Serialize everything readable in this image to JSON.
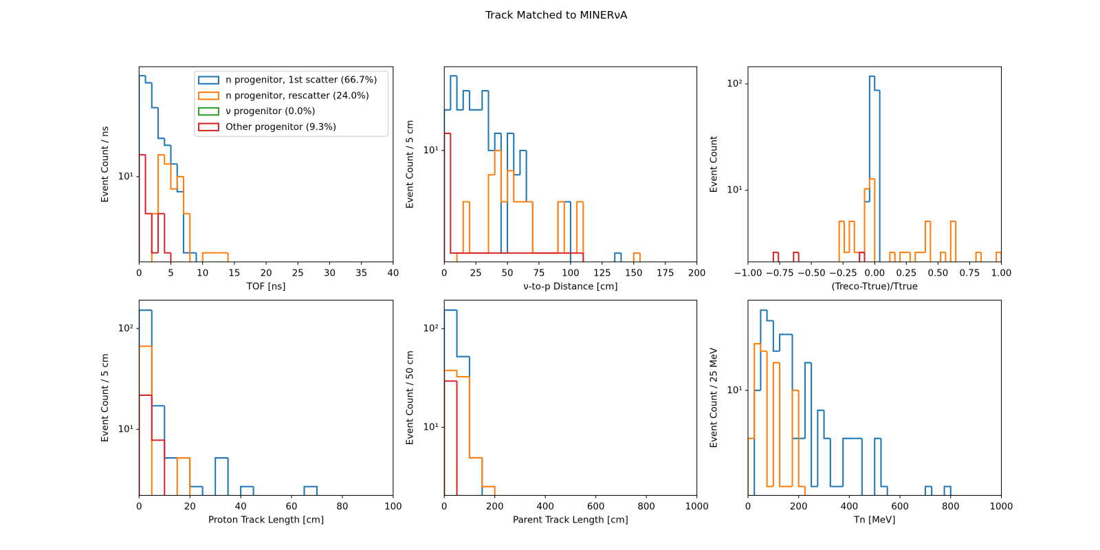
{
  "title": "Track Matched to MINERνA",
  "chart_data": [
    {
      "type": "histogram",
      "xlabel": "TOF [ns]",
      "ylabel": "Event Count / ns",
      "yscale": "log",
      "legend": "upper right",
      "xlim": [
        0,
        40
      ],
      "xticks": [
        0,
        5,
        10,
        15,
        20,
        25,
        30,
        35,
        40
      ],
      "ylim": [
        2.12,
        74
      ],
      "yticks": [
        {
          "value": 10,
          "label": "10¹"
        }
      ],
      "bins": [
        0,
        1,
        2,
        3,
        4,
        5,
        6,
        7,
        8,
        9,
        10,
        11,
        12,
        13,
        14,
        15
      ],
      "series": [
        {
          "name": "n progenitor, 1st scatter (66.7%)",
          "color": "#1f77b4",
          "values": [
            62.8,
            55.2,
            35.1,
            20.1,
            17.7,
            12.6,
            7.6,
            2.5,
            2.5,
            0,
            0,
            0,
            0,
            0,
            0
          ]
        },
        {
          "name": "n progenitor, rescatter (24.0%)",
          "color": "#ff7f0e",
          "values": [
            0,
            0,
            5.1,
            14.9,
            12.6,
            8.0,
            10,
            5.1,
            0,
            0,
            2.5,
            2.5,
            2.5,
            2.5,
            0
          ]
        },
        {
          "name": "ν progenitor (0.0%)",
          "color": "#2ca02c",
          "values": [
            0,
            0,
            0,
            0,
            0,
            0,
            0,
            0,
            0,
            0,
            0,
            0,
            0,
            0,
            0
          ]
        },
        {
          "name": "Other progenitor (9.3%)",
          "color": "#d62728",
          "values": [
            14.9,
            5.1,
            2.5,
            5.1,
            2.5,
            0,
            0,
            0,
            0,
            0,
            0,
            0,
            0,
            0,
            0
          ]
        }
      ]
    },
    {
      "type": "histogram",
      "xlabel": "ν-to-p Distance [cm]",
      "ylabel": "Event Count / 5 cm",
      "yscale": "log",
      "xlim": [
        0,
        200
      ],
      "xticks": [
        0,
        25,
        50,
        75,
        100,
        125,
        150,
        175,
        200
      ],
      "ylim": [
        2.22,
        31
      ],
      "yticks": [
        {
          "value": 10,
          "label": "10¹"
        }
      ],
      "bins": [
        0,
        5,
        10,
        15,
        20,
        25,
        30,
        35,
        40,
        45,
        50,
        55,
        60,
        65,
        70,
        75,
        80,
        85,
        90,
        95,
        100,
        105,
        110,
        115,
        120,
        125,
        130,
        135,
        140,
        145,
        150,
        155,
        160
      ],
      "series": [
        {
          "color": "#1f77b4",
          "values": [
            17.3,
            27.4,
            17.3,
            22.4,
            17.3,
            17.3,
            22.4,
            10,
            12.6,
            2.5,
            12.6,
            7.2,
            10,
            5.0,
            2.5,
            2.5,
            2.5,
            2.5,
            5.0,
            5.0,
            0,
            0,
            0,
            0,
            0,
            0,
            0,
            2.5,
            0,
            0,
            0,
            0
          ]
        },
        {
          "color": "#ff7f0e",
          "values": [
            0,
            0,
            2.5,
            5.0,
            2.5,
            2.5,
            2.5,
            7.2,
            10,
            5.0,
            7.6,
            5.0,
            5.0,
            5.0,
            2.5,
            2.5,
            2.5,
            2.5,
            5.0,
            2.5,
            2.5,
            5.0,
            0,
            0,
            0,
            0,
            0,
            0,
            0,
            0,
            2.5,
            0
          ]
        },
        {
          "color": "#d62728",
          "values": [
            12.6,
            2.5,
            2.5,
            2.5,
            2.5,
            2.5,
            2.5,
            2.5,
            2.5,
            2.5,
            2.5,
            2.5,
            2.5,
            2.5,
            2.5,
            2.5,
            2.5,
            2.5,
            2.5,
            2.5,
            2.5,
            2.5,
            0,
            0,
            0,
            0,
            0,
            0,
            0,
            0,
            0,
            0
          ]
        }
      ]
    },
    {
      "type": "histogram",
      "xlabel": "(Treco-Ttrue)/Ttrue",
      "ylabel": "Event Count",
      "yscale": "log",
      "xlim": [
        -1,
        1
      ],
      "xticks": [
        {
          "value": -1,
          "label": "−1.00"
        },
        {
          "value": -0.75,
          "label": "−0.75"
        },
        {
          "value": -0.5,
          "label": "−0.50"
        },
        {
          "value": -0.25,
          "label": "−0.25"
        },
        {
          "value": 0,
          "label": "0.00"
        },
        {
          "value": 0.25,
          "label": "0.25"
        },
        {
          "value": 0.5,
          "label": "0.50"
        },
        {
          "value": 0.75,
          "label": "0.75"
        },
        {
          "value": 1,
          "label": "1.00"
        }
      ],
      "ylim": [
        2.12,
        145
      ],
      "yticks": [
        {
          "value": 10,
          "label": "10¹"
        },
        {
          "value": 100,
          "label": "10²"
        }
      ],
      "bins": [
        -1,
        -0.96,
        -0.92,
        -0.88,
        -0.84,
        -0.8,
        -0.76,
        -0.72,
        -0.68,
        -0.64,
        -0.6,
        -0.56,
        -0.52,
        -0.48,
        -0.44,
        -0.4,
        -0.36,
        -0.32,
        -0.28,
        -0.24,
        -0.2,
        -0.16,
        -0.12,
        -0.08,
        -0.04,
        0,
        0.04,
        0.08,
        0.12,
        0.16,
        0.2,
        0.24,
        0.28,
        0.32,
        0.36,
        0.4,
        0.44,
        0.48,
        0.52,
        0.56,
        0.6,
        0.64,
        0.68,
        0.72,
        0.76,
        0.8,
        0.84,
        0.88,
        0.92,
        0.96,
        1
      ],
      "series": [
        {
          "color": "#1f77b4",
          "values": [
            0,
            0,
            0,
            0,
            0,
            0,
            0,
            0,
            0,
            0,
            0,
            0,
            0,
            0,
            0,
            0,
            0,
            0,
            0,
            0,
            0,
            0,
            2.6,
            7.8,
            118,
            87,
            0,
            0,
            0,
            0,
            0,
            0,
            0,
            0,
            0,
            0,
            0,
            0,
            0,
            0,
            0,
            0,
            0,
            0,
            0,
            0,
            0,
            0,
            0,
            0
          ]
        },
        {
          "color": "#ff7f0e",
          "values": [
            0,
            0,
            0,
            0,
            0,
            0,
            0,
            0,
            0,
            0,
            0,
            0,
            0,
            0,
            0,
            0,
            0,
            0,
            5.1,
            2.6,
            5.1,
            2.6,
            2.6,
            10.3,
            12.8,
            0,
            0,
            0,
            2.6,
            0,
            2.6,
            2.6,
            0,
            2.6,
            2.6,
            5.1,
            0,
            0,
            2.6,
            0,
            5.1,
            0,
            0,
            0,
            0,
            2.6,
            0,
            0,
            0,
            2.6
          ]
        },
        {
          "color": "#d62728",
          "values": [
            0,
            0,
            0,
            0,
            0,
            2.6,
            0,
            0,
            0,
            2.6,
            0,
            0,
            0,
            0,
            0,
            0,
            0,
            0,
            0,
            0,
            0,
            0,
            2.6,
            0,
            0,
            0,
            0,
            0,
            0,
            0,
            0,
            0,
            0,
            0,
            0,
            0,
            0,
            0,
            0,
            0,
            0,
            0,
            0,
            0,
            0,
            0,
            0,
            0,
            0,
            0
          ]
        }
      ]
    },
    {
      "type": "histogram",
      "xlabel": "Proton Track Length [cm]",
      "ylabel": "Event Count / 5 cm",
      "yscale": "log",
      "xlim": [
        0,
        100
      ],
      "xticks": [
        0,
        20,
        40,
        60,
        80,
        100
      ],
      "ylim": [
        2.21,
        191
      ],
      "yticks": [
        {
          "value": 10,
          "label": "10¹"
        },
        {
          "value": 100,
          "label": "10²"
        }
      ],
      "bins": [
        0,
        5,
        10,
        15,
        20,
        25,
        30,
        35,
        40,
        45,
        50,
        55,
        60,
        65,
        70
      ],
      "series": [
        {
          "color": "#1f77b4",
          "values": [
            152,
            17.1,
            5.2,
            5.2,
            2.7,
            0,
            5.2,
            0,
            2.7,
            0,
            0,
            0,
            0,
            2.7
          ]
        },
        {
          "color": "#ff7f0e",
          "values": [
            66.7,
            0,
            0,
            5.2,
            0,
            0,
            0,
            0,
            0,
            0,
            0,
            0,
            0,
            0
          ]
        },
        {
          "color": "#d62728",
          "values": [
            21.8,
            7.8,
            0,
            0,
            0,
            0,
            0,
            0,
            0,
            0,
            0,
            0,
            0,
            0
          ]
        }
      ]
    },
    {
      "type": "histogram",
      "xlabel": "Parent Track Length [cm]",
      "ylabel": "Event Count / 50 cm",
      "yscale": "log",
      "xlim": [
        0,
        1000
      ],
      "xticks": [
        0,
        200,
        400,
        600,
        800,
        1000
      ],
      "ylim": [
        2.04,
        194
      ],
      "yticks": [
        {
          "value": 10,
          "label": "10¹"
        },
        {
          "value": 100,
          "label": "10²"
        }
      ],
      "bins": [
        0,
        50,
        100,
        150,
        200
      ],
      "series": [
        {
          "color": "#1f77b4",
          "values": [
            154,
            52,
            4.9,
            0
          ]
        },
        {
          "color": "#ff7f0e",
          "values": [
            37.7,
            32.5,
            4.9,
            2.5
          ]
        },
        {
          "color": "#d62728",
          "values": [
            29.4,
            0,
            0,
            0
          ]
        }
      ]
    },
    {
      "type": "histogram",
      "xlabel": "Tn [MeV]",
      "ylabel": "Event Count / 25 MeV",
      "yscale": "log",
      "xlim": [
        0,
        1000
      ],
      "xticks": [
        0,
        200,
        400,
        600,
        800,
        1000
      ],
      "ylim": [
        2.2,
        36.7
      ],
      "yticks": [
        {
          "value": 10,
          "label": "10¹"
        }
      ],
      "bins": [
        0,
        25,
        50,
        75,
        100,
        125,
        150,
        175,
        200,
        225,
        250,
        275,
        300,
        325,
        350,
        375,
        400,
        425,
        450,
        475,
        500,
        525,
        550,
        575,
        600,
        625,
        650,
        675,
        700,
        725,
        750,
        775,
        800
      ],
      "series": [
        {
          "color": "#1f77b4",
          "values": [
            0,
            10,
            31.8,
            27.3,
            17.6,
            22.4,
            22.4,
            5.0,
            5.0,
            14.9,
            2.5,
            7.5,
            5.0,
            2.5,
            2.5,
            5.0,
            5.0,
            5.0,
            0,
            0,
            5.0,
            2.5,
            0,
            0,
            0,
            0,
            0,
            0,
            2.5,
            0,
            0,
            2.5
          ]
        },
        {
          "color": "#ff7f0e",
          "values": [
            5.0,
            19.6,
            17.6,
            2.5,
            14.9,
            2.5,
            2.5,
            10,
            2.5,
            0,
            0,
            0,
            0,
            0,
            0,
            0,
            0,
            0,
            0,
            0,
            0,
            0,
            0,
            0,
            0,
            0,
            0,
            0,
            0,
            0,
            0,
            0
          ]
        }
      ]
    }
  ]
}
